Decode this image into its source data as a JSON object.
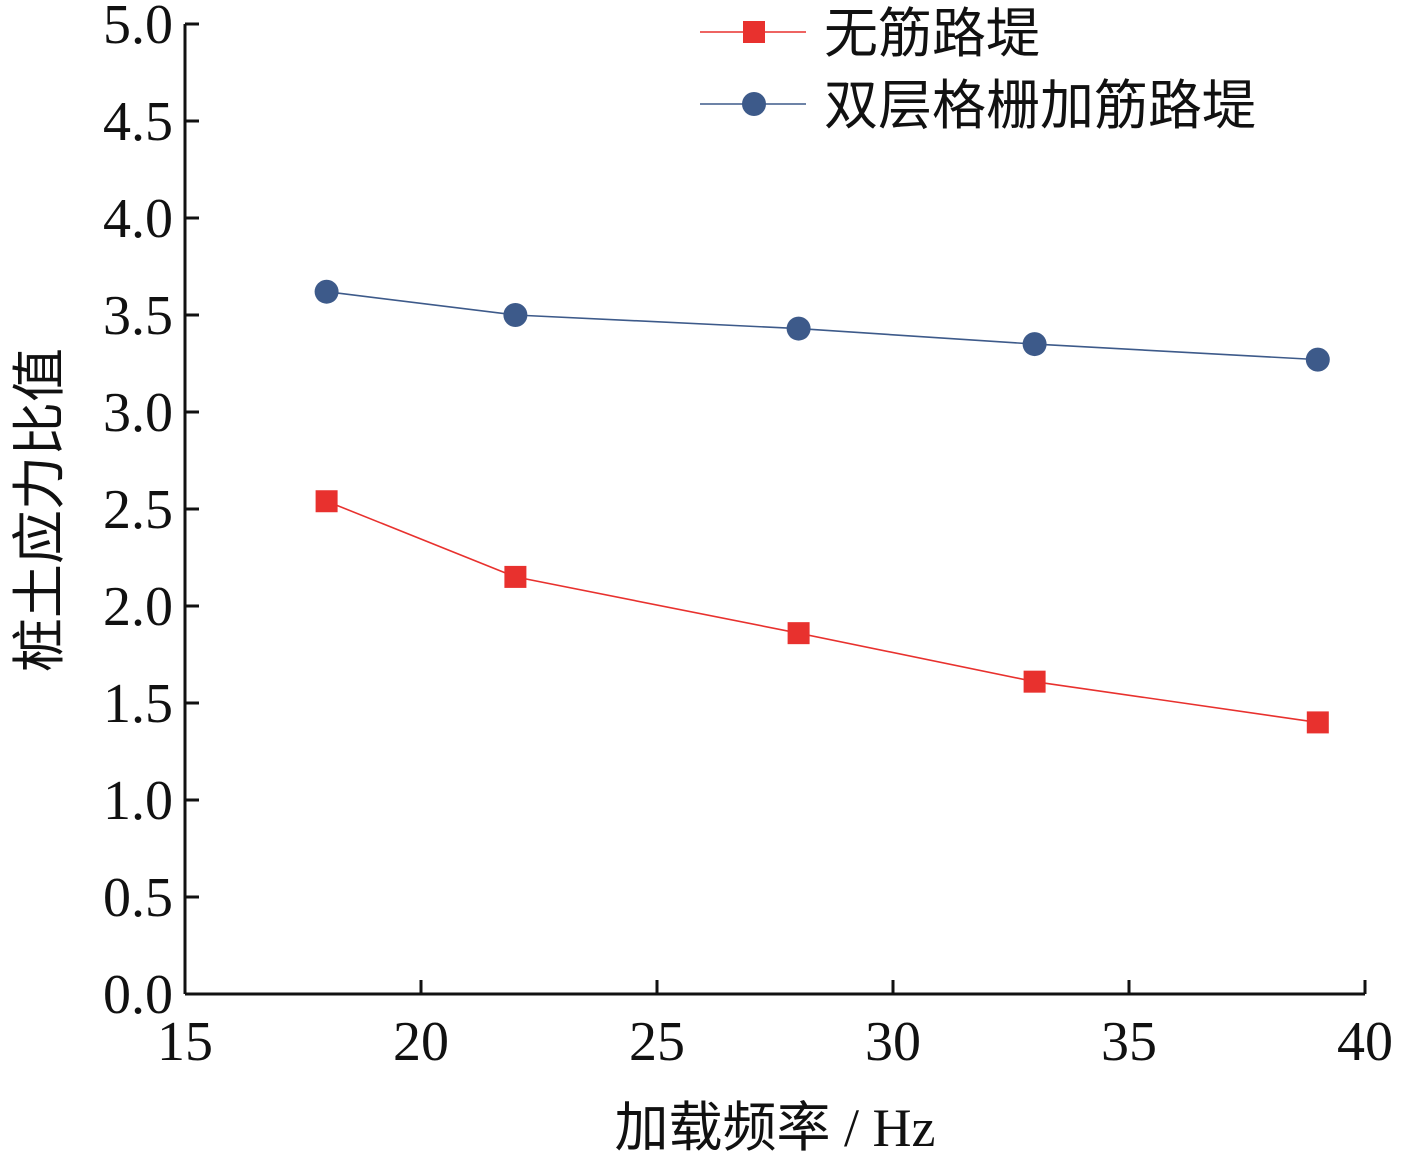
{
  "chart_data": {
    "type": "line",
    "xlabel": "加载频率 / Hz",
    "ylabel": "桩土应力比值",
    "xlim": [
      15,
      40
    ],
    "ylim": [
      0.0,
      5.0
    ],
    "x_ticks": [
      "15",
      "20",
      "25",
      "30",
      "35",
      "40"
    ],
    "y_ticks": [
      "0.0",
      "0.5",
      "1.0",
      "1.5",
      "2.0",
      "2.5",
      "3.0",
      "3.5",
      "4.0",
      "4.5",
      "5.0"
    ],
    "x": [
      18,
      22,
      28,
      33,
      39
    ],
    "series": [
      {
        "name": "无筋路堤",
        "values": [
          2.54,
          2.15,
          1.86,
          1.61,
          1.4
        ],
        "color": "#e8312e",
        "marker": "square"
      },
      {
        "name": "双层格栅加筋路堤",
        "values": [
          3.62,
          3.5,
          3.43,
          3.35,
          3.27
        ],
        "color": "#3d5a8a",
        "marker": "circle"
      }
    ],
    "legend_position": "top-right",
    "grid": false
  }
}
